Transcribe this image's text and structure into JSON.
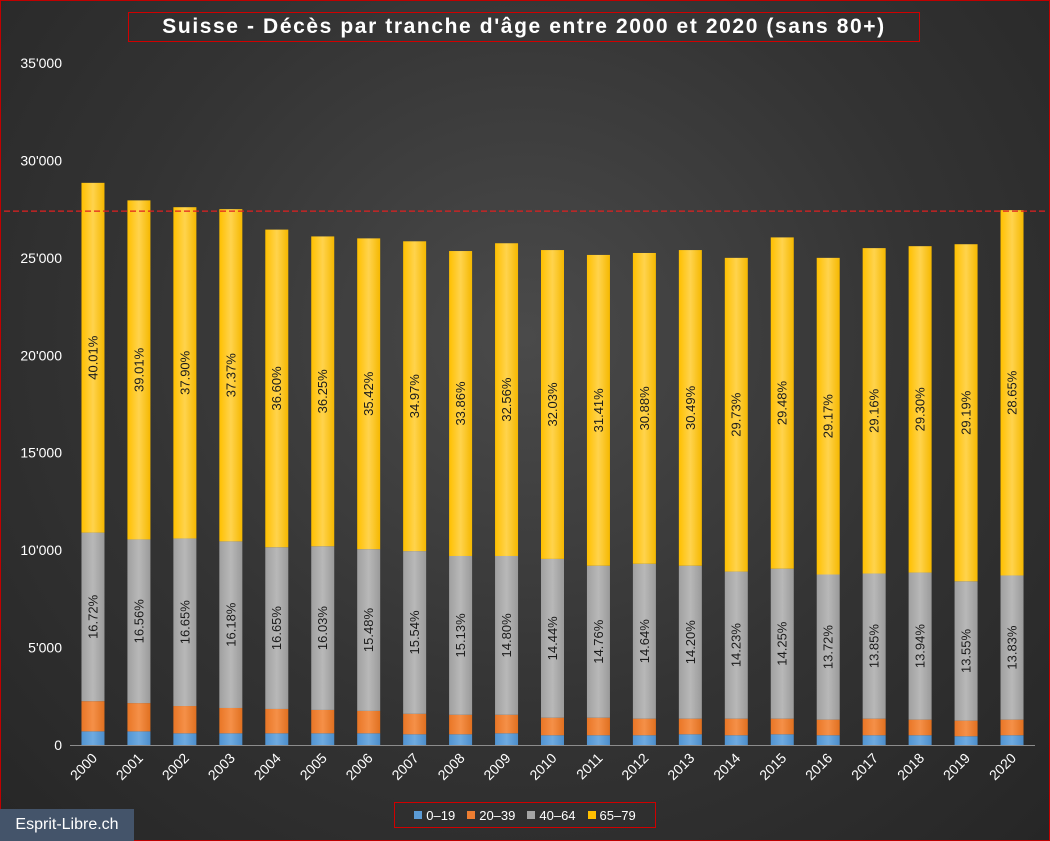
{
  "brand": "Esprit-Libre.ch",
  "chart_data": {
    "type": "bar",
    "stacked": true,
    "title": "Suisse - Décès par tranche d'âge entre 2000 et 2020 (sans 80+)",
    "xlabel": "",
    "ylabel": "",
    "ylim": [
      0,
      35000
    ],
    "yticks": [
      0,
      5000,
      10000,
      15000,
      20000,
      25000,
      30000,
      35000
    ],
    "ytick_labels": [
      "0",
      "5'000",
      "10'000",
      "15'000",
      "20'000",
      "25'000",
      "30'000",
      "35'000"
    ],
    "grid": false,
    "legend_position": "bottom",
    "reference_line": {
      "y": 27400,
      "color": "#e02020",
      "style": "dashed"
    },
    "categories": [
      "2000",
      "2001",
      "2002",
      "2003",
      "2004",
      "2005",
      "2006",
      "2007",
      "2008",
      "2009",
      "2010",
      "2011",
      "2012",
      "2013",
      "2014",
      "2015",
      "2016",
      "2017",
      "2018",
      "2019",
      "2020"
    ],
    "series": [
      {
        "name": "0–19",
        "color": "#5b9bd5",
        "values": [
          700,
          700,
          600,
          600,
          600,
          600,
          600,
          550,
          550,
          600,
          500,
          500,
          500,
          550,
          500,
          550,
          500,
          500,
          500,
          450,
          500
        ]
      },
      {
        "name": "20–39",
        "color": "#ed7d31",
        "values": [
          1550,
          1450,
          1400,
          1300,
          1250,
          1200,
          1150,
          1050,
          1000,
          950,
          900,
          900,
          850,
          800,
          850,
          800,
          800,
          850,
          800,
          800,
          800
        ]
      },
      {
        "name": "40–64",
        "color": "#a5a5a5",
        "values": [
          8650,
          8400,
          8600,
          8550,
          8300,
          8400,
          8300,
          8350,
          8150,
          8150,
          8150,
          7800,
          7950,
          7850,
          7550,
          7700,
          7450,
          7450,
          7550,
          7150,
          7400
        ],
        "labels": [
          "16.72%",
          "16.56%",
          "16.65%",
          "16.18%",
          "16.65%",
          "16.03%",
          "15.48%",
          "15.54%",
          "15.13%",
          "14.80%",
          "14.44%",
          "14.76%",
          "14.64%",
          "14.20%",
          "14.23%",
          "14.25%",
          "13.72%",
          "13.85%",
          "13.94%",
          "13.55%",
          "13.83%"
        ]
      },
      {
        "name": "65–79",
        "color": "#ffc000",
        "values": [
          17950,
          17400,
          17000,
          17050,
          16300,
          15900,
          15950,
          15900,
          15650,
          16050,
          15850,
          15950,
          15950,
          16200,
          16100,
          17000,
          16250,
          16700,
          16750,
          17300,
          18750
        ],
        "labels": [
          "40.01%",
          "39.01%",
          "37.90%",
          "37.37%",
          "36.60%",
          "36.25%",
          "35.42%",
          "34.97%",
          "33.86%",
          "32.56%",
          "32.03%",
          "31.41%",
          "30.88%",
          "30.49%",
          "29.73%",
          "29.48%",
          "29.17%",
          "29.16%",
          "29.30%",
          "29.19%",
          "28.65%"
        ]
      }
    ]
  }
}
